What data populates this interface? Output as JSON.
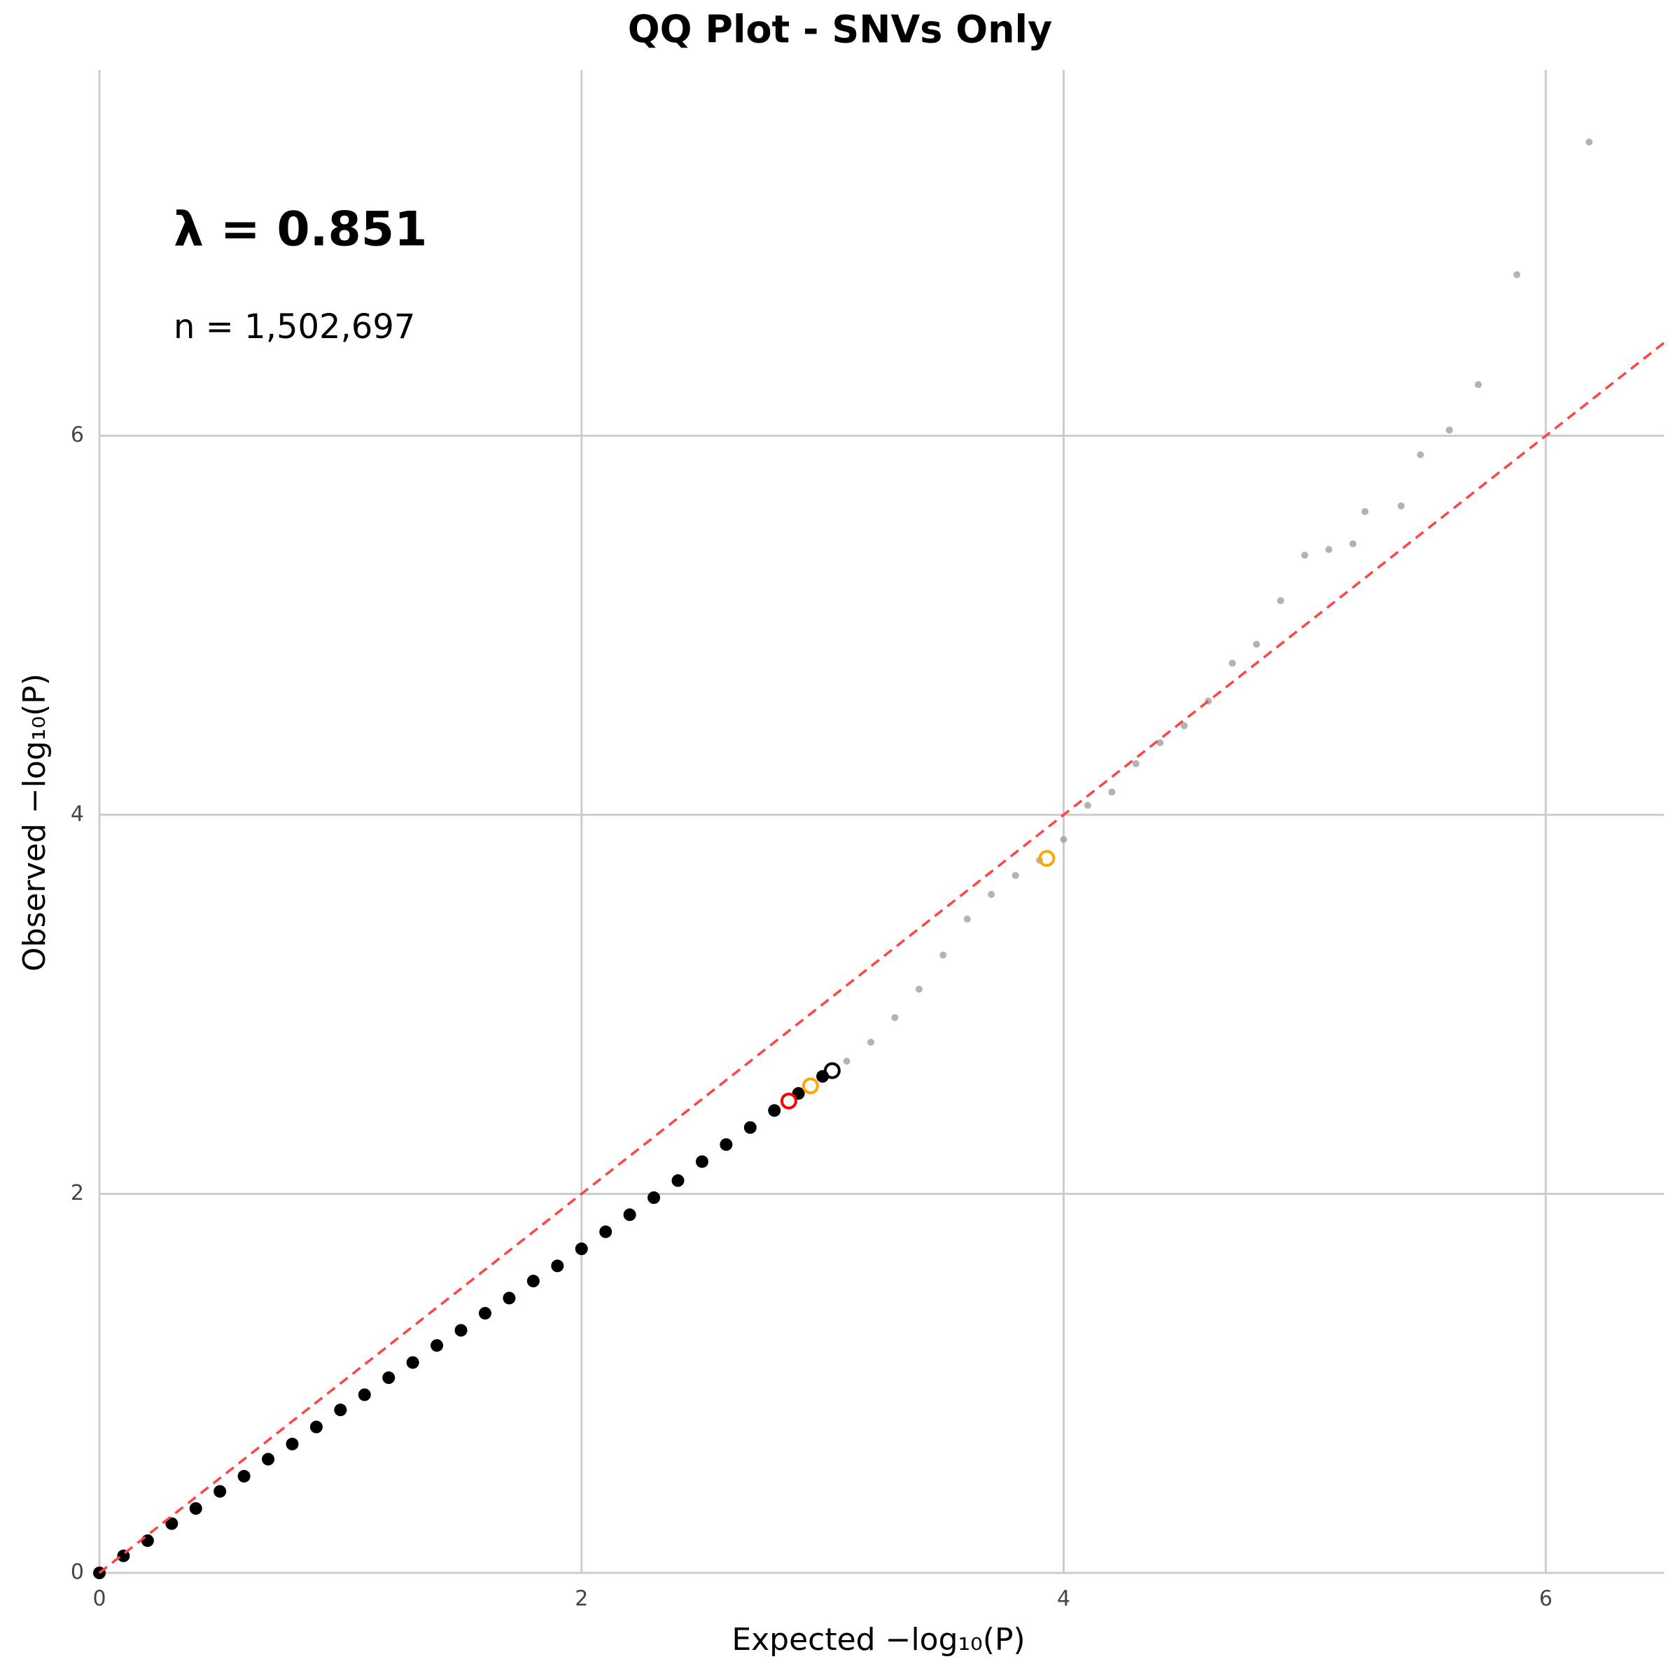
{
  "chart_data": {
    "type": "scatter",
    "title": "QQ Plot - SNVs Only",
    "x_label": "Expected −log₁₀(P)",
    "y_label": "Observed −log₁₀(P)",
    "annotations": [
      "λ = 0.851",
      "n = 1,502,697"
    ],
    "xlim": [
      0,
      6.49
    ],
    "ylim": [
      0,
      7.93
    ],
    "xticks": [
      0,
      2,
      4,
      6
    ],
    "yticks": [
      0,
      2,
      4,
      6
    ],
    "grid": true,
    "diagonal": true,
    "diagonal_color": "#ff4444",
    "series": [
      {
        "color": "#000000",
        "marker": "filled",
        "x": [
          0,
          0.1,
          0.2,
          0.3,
          0.4,
          0.5,
          0.6,
          0.7,
          0.8,
          0.9,
          1.0,
          1.1,
          1.2,
          1.3,
          1.4,
          1.5,
          1.6,
          1.7,
          1.8,
          1.9,
          2.0,
          2.1,
          2.2,
          2.3,
          2.4,
          2.5,
          2.6,
          2.7,
          2.8,
          2.9,
          3.0
        ],
        "values": [
          0,
          0.09,
          0.17,
          0.26,
          0.34,
          0.43,
          0.51,
          0.6,
          0.68,
          0.77,
          0.86,
          0.94,
          1.03,
          1.11,
          1.2,
          1.28,
          1.37,
          1.45,
          1.54,
          1.62,
          1.71,
          1.8,
          1.89,
          1.98,
          2.07,
          2.17,
          2.26,
          2.35,
          2.44,
          2.53,
          2.62
        ]
      },
      {
        "color": "#a0a0a0",
        "marker": "small",
        "x": [
          3.1,
          3.2,
          3.3,
          3.4,
          3.5,
          3.6,
          3.7,
          3.8,
          3.9,
          4.0,
          4.1,
          4.2,
          4.3,
          4.4,
          4.5,
          4.6,
          4.7,
          4.8,
          4.9,
          5.0,
          5.1,
          5.2,
          5.25,
          5.4,
          5.48,
          5.6,
          5.72,
          5.88,
          6.18
        ],
        "values": [
          2.7,
          2.8,
          2.93,
          3.08,
          3.26,
          3.45,
          3.58,
          3.68,
          3.76,
          3.87,
          4.05,
          4.12,
          4.27,
          4.38,
          4.47,
          4.6,
          4.8,
          4.9,
          5.13,
          5.37,
          5.4,
          5.43,
          5.6,
          5.63,
          5.9,
          6.03,
          6.27,
          6.85,
          7.55
        ]
      },
      {
        "color": "#000000",
        "marker": "open",
        "x": [
          3.04
        ],
        "values": [
          2.65
        ]
      },
      {
        "color": "#ffa500",
        "marker": "open",
        "x": [
          3.93,
          2.95
        ],
        "values": [
          3.77,
          2.57
        ]
      },
      {
        "color": "#ff0000",
        "marker": "open",
        "x": [
          2.86
        ],
        "values": [
          2.49
        ]
      }
    ]
  }
}
